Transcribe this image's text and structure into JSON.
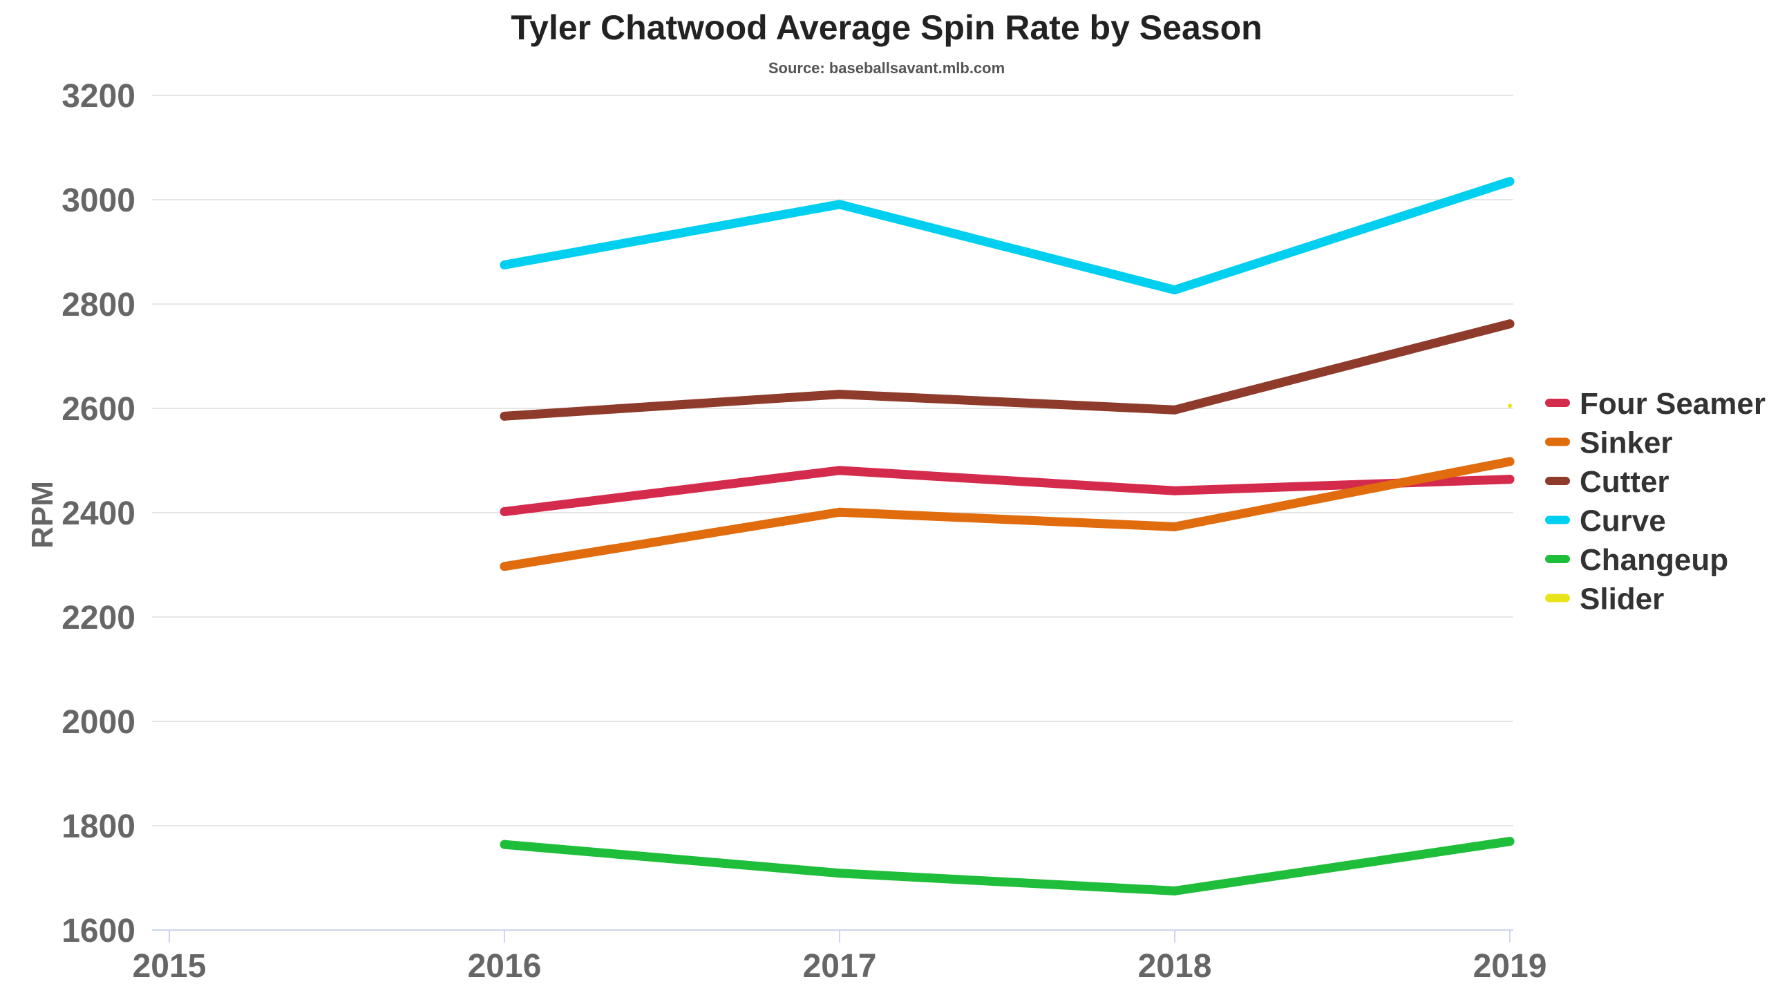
{
  "chart_data": {
    "type": "line",
    "title": "Tyler Chatwood Average Spin Rate by Season",
    "subtitle": "Source: baseballsavant.mlb.com",
    "xlabel": "",
    "ylabel": "RPM",
    "x": [
      2015,
      2016,
      2017,
      2018,
      2019
    ],
    "xlim": [
      2015,
      2019
    ],
    "ylim": [
      1600,
      3200
    ],
    "yticks": [
      1600,
      1800,
      2000,
      2200,
      2400,
      2600,
      2800,
      3000,
      3200
    ],
    "grid": true,
    "legend_position": "right",
    "series": [
      {
        "name": "Four Seamer",
        "color": "#d42b4d",
        "values": [
          null,
          2402,
          2481,
          2442,
          2464
        ]
      },
      {
        "name": "Sinker",
        "color": "#e06c0d",
        "values": [
          null,
          2297,
          2401,
          2373,
          2498
        ]
      },
      {
        "name": "Cutter",
        "color": "#8e3b2b",
        "values": [
          null,
          2585,
          2627,
          2597,
          2762
        ]
      },
      {
        "name": "Curve",
        "color": "#00cfef",
        "values": [
          null,
          2875,
          2991,
          2827,
          3035
        ]
      },
      {
        "name": "Changeup",
        "color": "#1fbe3a",
        "values": [
          null,
          1764,
          1709,
          1675,
          1770
        ]
      },
      {
        "name": "Slider",
        "color": "#e8e41c",
        "values": [
          null,
          null,
          null,
          null,
          2605
        ]
      }
    ]
  }
}
